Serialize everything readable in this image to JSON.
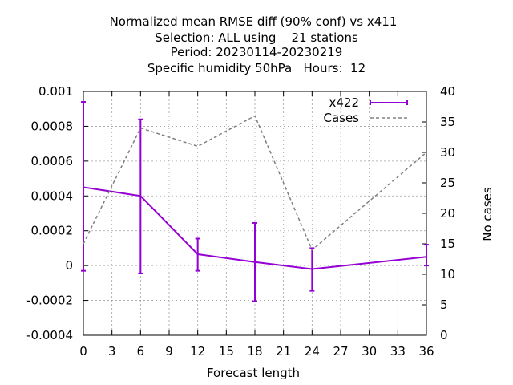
{
  "chart_data": {
    "type": "line",
    "title_lines": [
      "Normalized mean RMSE diff (90% conf) vs x411",
      "Selection: ALL using    21 stations",
      "Period: 20230114-20230219",
      "Specific humidity 50hPa   Hours:  12"
    ],
    "xlabel": "Forecast length",
    "ylabel": "",
    "y2label": "No cases",
    "xlim": [
      0,
      36
    ],
    "ylim": [
      -0.0004,
      0.001
    ],
    "y2lim": [
      0,
      40
    ],
    "x_ticks": [
      "0",
      "3",
      "6",
      "9",
      "12",
      "15",
      "18",
      "21",
      "24",
      "27",
      "30",
      "33",
      "36"
    ],
    "y_ticks": [
      "0.001",
      "0.0008",
      "0.0006",
      "0.0004",
      "0.0002",
      "0",
      "-0.0002",
      "-0.0004"
    ],
    "y2_ticks": [
      "40",
      "35",
      "30",
      "25",
      "20",
      "15",
      "10",
      "5",
      "0"
    ],
    "grid": true,
    "legend_position": "top-right",
    "series": [
      {
        "name": "x422",
        "axis": "left",
        "color": "#9400d3",
        "style": "solid-errorbars",
        "x": [
          0,
          6,
          12,
          18,
          24,
          36
        ],
        "y": [
          0.00045,
          0.0004,
          6.5e-05,
          2e-05,
          -2e-05,
          5e-05
        ],
        "err_low": [
          -3e-05,
          -4.5e-05,
          -3e-05,
          -0.000205,
          -0.000145,
          0.0
        ],
        "err_high": [
          0.00094,
          0.00084,
          0.000155,
          0.000245,
          0.0001,
          0.00012
        ]
      },
      {
        "name": "Cases",
        "axis": "right",
        "color": "#808080",
        "style": "dashed",
        "x": [
          0,
          6,
          12,
          18,
          24,
          36
        ],
        "y": [
          15,
          34,
          31,
          36,
          14,
          30
        ]
      }
    ]
  }
}
